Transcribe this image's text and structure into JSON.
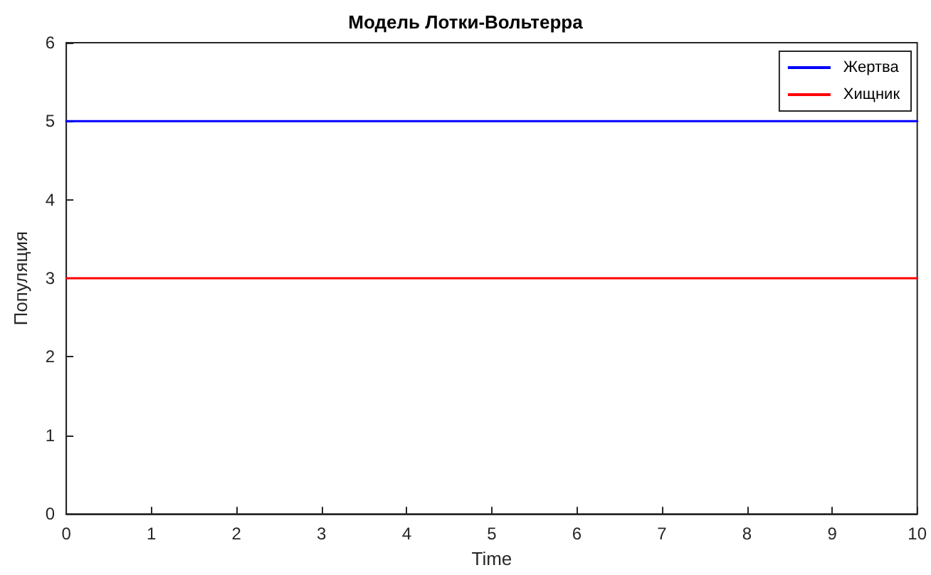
{
  "chart_data": {
    "type": "line",
    "title": "Модель Лотки-Вольтерра",
    "xlabel": "Time",
    "ylabel": "Популяция",
    "x": [
      0,
      10
    ],
    "series": [
      {
        "name": "Жертва",
        "color": "#0000ff",
        "values": [
          5,
          5
        ]
      },
      {
        "name": "Хищник",
        "color": "#ff0000",
        "values": [
          3,
          3
        ]
      }
    ],
    "xlim": [
      0,
      10
    ],
    "xticks": [
      0,
      1,
      2,
      3,
      4,
      5,
      6,
      7,
      8,
      9,
      10
    ],
    "ylim": [
      0,
      6
    ],
    "yticks": [
      0,
      1,
      2,
      3,
      4,
      5,
      6
    ],
    "grid": false,
    "legend": "top right",
    "marker": "none",
    "line_style": "solid"
  }
}
